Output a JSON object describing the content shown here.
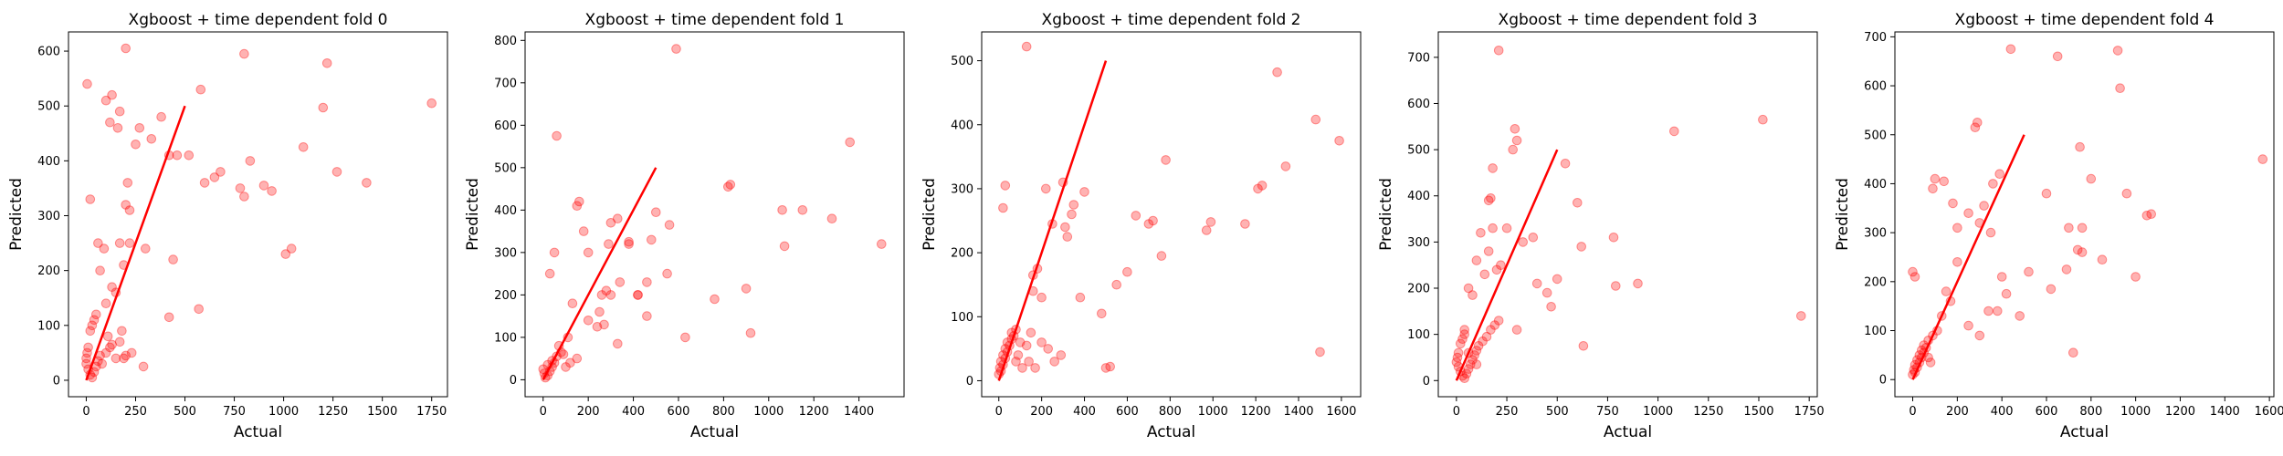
{
  "figure": {
    "background": "#ffffff",
    "point_color": "#ff0000",
    "point_alpha": 0.3,
    "line_color": "#ff0000"
  },
  "chart_data": [
    {
      "type": "scatter",
      "title": "Xgboost + time dependent fold 0",
      "xlabel": "Actual",
      "ylabel": "Predicted",
      "xlim": [
        -90,
        1830
      ],
      "ylim": [
        -30,
        635
      ],
      "xticks": [
        0,
        250,
        500,
        750,
        1000,
        1250,
        1500,
        1750
      ],
      "yticks": [
        0,
        100,
        200,
        300,
        400,
        500,
        600
      ],
      "reference_line": {
        "x": [
          0,
          500
        ],
        "y": [
          0,
          500
        ]
      },
      "points": {
        "x": [
          5,
          200,
          20,
          130,
          100,
          170,
          120,
          800,
          1220,
          1200,
          1750,
          580,
          380,
          330,
          270,
          160,
          250,
          210,
          200,
          220,
          460,
          420,
          520,
          650,
          600,
          680,
          780,
          830,
          900,
          940,
          1100,
          1270,
          1420,
          1040,
          1010,
          800,
          570,
          440,
          420,
          300,
          220,
          190,
          170,
          150,
          130,
          100,
          70,
          50,
          40,
          30,
          20,
          10,
          5,
          0,
          0,
          10,
          20,
          30,
          40,
          50,
          60,
          70,
          80,
          100,
          120,
          150,
          170,
          180,
          190,
          200,
          230,
          290,
          60,
          90,
          110,
          130
        ],
        "y": [
          540,
          605,
          330,
          520,
          510,
          490,
          470,
          595,
          578,
          497,
          505,
          530,
          480,
          440,
          460,
          460,
          430,
          360,
          320,
          310,
          410,
          410,
          410,
          370,
          360,
          380,
          350,
          400,
          355,
          345,
          425,
          380,
          360,
          240,
          230,
          335,
          130,
          220,
          115,
          240,
          250,
          210,
          250,
          160,
          170,
          140,
          200,
          120,
          110,
          100,
          90,
          60,
          50,
          40,
          30,
          20,
          10,
          5,
          15,
          25,
          35,
          45,
          30,
          50,
          60,
          40,
          70,
          90,
          40,
          45,
          50,
          25,
          250,
          240,
          80,
          65
        ]
      }
    },
    {
      "type": "scatter",
      "title": "Xgboost + time dependent fold 1",
      "xlabel": "Actual",
      "ylabel": "Predicted",
      "xlim": [
        -80,
        1600
      ],
      "ylim": [
        -40,
        820
      ],
      "xticks": [
        0,
        200,
        400,
        600,
        800,
        1000,
        1200,
        1400
      ],
      "yticks": [
        0,
        100,
        200,
        300,
        400,
        500,
        600,
        700,
        800
      ],
      "reference_line": {
        "x": [
          0,
          500
        ],
        "y": [
          0,
          500
        ]
      },
      "points": {
        "x": [
          590,
          60,
          30,
          50,
          1360,
          1500,
          1280,
          1150,
          1060,
          1070,
          830,
          820,
          900,
          920,
          760,
          630,
          560,
          550,
          500,
          480,
          460,
          420,
          380,
          330,
          300,
          290,
          280,
          260,
          240,
          200,
          180,
          160,
          150,
          130,
          110,
          90,
          70,
          50,
          40,
          30,
          20,
          10,
          5,
          0,
          20,
          40,
          60,
          80,
          100,
          120,
          150,
          200,
          250,
          300,
          340,
          380,
          420,
          460,
          330,
          270
        ],
        "y": [
          780,
          575,
          250,
          300,
          560,
          320,
          380,
          400,
          400,
          315,
          460,
          455,
          215,
          110,
          190,
          100,
          365,
          250,
          395,
          330,
          230,
          200,
          325,
          380,
          370,
          320,
          210,
          200,
          125,
          300,
          350,
          420,
          410,
          180,
          100,
          60,
          80,
          40,
          30,
          20,
          10,
          5,
          15,
          25,
          35,
          45,
          55,
          65,
          30,
          40,
          50,
          140,
          160,
          200,
          230,
          320,
          200,
          150,
          85,
          130
        ]
      }
    },
    {
      "type": "scatter",
      "title": "Xgboost + time dependent fold 2",
      "xlabel": "Actual",
      "ylabel": "Predicted",
      "xlim": [
        -80,
        1690
      ],
      "ylim": [
        -25,
        545
      ],
      "xticks": [
        0,
        200,
        400,
        600,
        800,
        1000,
        1200,
        1400,
        1600
      ],
      "yticks": [
        0,
        100,
        200,
        300,
        400,
        500
      ],
      "reference_line": {
        "x": [
          0,
          500
        ],
        "y": [
          0,
          500
        ]
      },
      "points": {
        "x": [
          130,
          1300,
          1480,
          1590,
          1500,
          1340,
          1230,
          1210,
          1150,
          990,
          970,
          780,
          760,
          720,
          700,
          640,
          600,
          550,
          520,
          480,
          400,
          380,
          350,
          340,
          320,
          310,
          300,
          250,
          220,
          200,
          180,
          160,
          150,
          130,
          100,
          80,
          60,
          40,
          30,
          20,
          10,
          5,
          0,
          10,
          20,
          30,
          40,
          50,
          60,
          70,
          80,
          90,
          110,
          140,
          170,
          200,
          230,
          260,
          290,
          30,
          20,
          500,
          160
        ],
        "y": [
          522,
          482,
          408,
          375,
          45,
          335,
          305,
          300,
          245,
          248,
          235,
          345,
          195,
          250,
          245,
          258,
          170,
          150,
          22,
          105,
          295,
          130,
          275,
          260,
          225,
          240,
          310,
          245,
          300,
          130,
          175,
          165,
          75,
          55,
          60,
          80,
          75,
          60,
          50,
          40,
          30,
          20,
          10,
          15,
          25,
          35,
          45,
          55,
          65,
          70,
          30,
          40,
          20,
          30,
          20,
          60,
          50,
          30,
          40,
          305,
          270,
          20,
          140
        ]
      }
    },
    {
      "type": "scatter",
      "title": "Xgboost + time dependent fold 3",
      "xlabel": "Actual",
      "ylabel": "Predicted",
      "xlim": [
        -90,
        1790
      ],
      "ylim": [
        -35,
        755
      ],
      "xticks": [
        0,
        250,
        500,
        750,
        1000,
        1250,
        1500,
        1750
      ],
      "yticks": [
        0,
        100,
        200,
        300,
        400,
        500,
        600,
        700
      ],
      "reference_line": {
        "x": [
          0,
          500
        ],
        "y": [
          0,
          500
        ]
      },
      "points": {
        "x": [
          210,
          1520,
          1080,
          290,
          300,
          280,
          180,
          170,
          160,
          540,
          600,
          620,
          500,
          400,
          450,
          470,
          380,
          330,
          300,
          250,
          220,
          200,
          180,
          160,
          140,
          120,
          100,
          80,
          60,
          40,
          30,
          20,
          10,
          5,
          0,
          10,
          20,
          30,
          40,
          50,
          60,
          70,
          80,
          90,
          100,
          110,
          130,
          150,
          170,
          190,
          210,
          630,
          780,
          790,
          900,
          1710,
          40,
          60,
          100
        ],
        "y": [
          715,
          565,
          540,
          545,
          520,
          500,
          460,
          395,
          390,
          470,
          385,
          290,
          220,
          210,
          190,
          160,
          310,
          300,
          110,
          330,
          250,
          240,
          330,
          280,
          230,
          320,
          260,
          185,
          200,
          100,
          90,
          80,
          60,
          50,
          40,
          30,
          20,
          10,
          5,
          15,
          25,
          35,
          45,
          55,
          65,
          75,
          85,
          95,
          110,
          120,
          130,
          75,
          310,
          205,
          210,
          140,
          110,
          60,
          35
        ]
      }
    },
    {
      "type": "scatter",
      "title": "Xgboost + time dependent fold 4",
      "xlabel": "Actual",
      "ylabel": "Predicted",
      "xlim": [
        -80,
        1620
      ],
      "ylim": [
        -35,
        710
      ],
      "xticks": [
        0,
        200,
        400,
        600,
        800,
        1000,
        1200,
        1400,
        1600
      ],
      "yticks": [
        0,
        100,
        200,
        300,
        400,
        500,
        600,
        700
      ],
      "reference_line": {
        "x": [
          0,
          500
        ],
        "y": [
          0,
          500
        ]
      },
      "points": {
        "x": [
          440,
          920,
          650,
          930,
          290,
          280,
          100,
          90,
          140,
          180,
          200,
          250,
          300,
          320,
          350,
          360,
          390,
          400,
          600,
          620,
          700,
          750,
          760,
          800,
          850,
          960,
          1000,
          1050,
          1570,
          1070,
          760,
          740,
          720,
          690,
          520,
          480,
          420,
          380,
          340,
          300,
          250,
          200,
          170,
          150,
          130,
          110,
          90,
          70,
          50,
          40,
          30,
          20,
          10,
          5,
          0,
          10,
          20,
          30,
          40,
          50,
          60,
          70,
          80,
          0,
          10
        ],
        "y": [
          675,
          672,
          660,
          595,
          525,
          515,
          410,
          390,
          405,
          360,
          310,
          340,
          320,
          355,
          300,
          400,
          420,
          210,
          380,
          185,
          310,
          475,
          260,
          410,
          245,
          380,
          210,
          335,
          450,
          338,
          310,
          265,
          55,
          225,
          220,
          130,
          175,
          140,
          140,
          90,
          110,
          240,
          160,
          180,
          130,
          100,
          90,
          80,
          70,
          60,
          50,
          40,
          30,
          20,
          10,
          15,
          25,
          35,
          45,
          55,
          65,
          45,
          35,
          220,
          210
        ]
      }
    }
  ]
}
